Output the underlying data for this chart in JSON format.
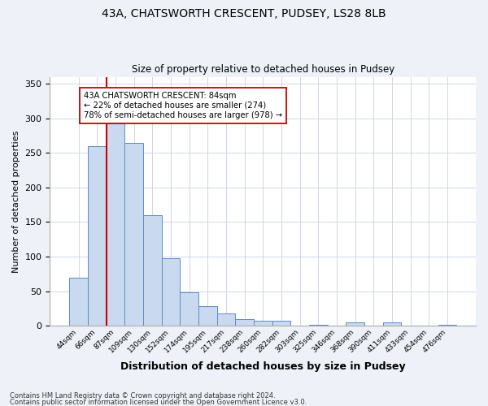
{
  "title1": "43A, CHATSWORTH CRESCENT, PUDSEY, LS28 8LB",
  "title2": "Size of property relative to detached houses in Pudsey",
  "xlabel": "Distribution of detached houses by size in Pudsey",
  "ylabel": "Number of detached properties",
  "bar_labels": [
    "44sqm",
    "66sqm",
    "87sqm",
    "109sqm",
    "130sqm",
    "152sqm",
    "174sqm",
    "195sqm",
    "217sqm",
    "238sqm",
    "260sqm",
    "282sqm",
    "303sqm",
    "325sqm",
    "346sqm",
    "368sqm",
    "390sqm",
    "411sqm",
    "433sqm",
    "454sqm",
    "476sqm"
  ],
  "bar_values": [
    70,
    260,
    293,
    265,
    160,
    98,
    48,
    28,
    18,
    10,
    7,
    7,
    0,
    2,
    0,
    5,
    0,
    5,
    0,
    0,
    2
  ],
  "bar_color": "#c9d9ef",
  "bar_edge_color": "#5b8cc8",
  "vline_color": "#cc0000",
  "annotation_text": "43A CHATSWORTH CRESCENT: 84sqm\n← 22% of detached houses are smaller (274)\n78% of semi-detached houses are larger (978) →",
  "annotation_box_color": "#ffffff",
  "annotation_box_edge_color": "#cc0000",
  "ylim": [
    0,
    360
  ],
  "yticks": [
    0,
    50,
    100,
    150,
    200,
    250,
    300,
    350
  ],
  "footnote1": "Contains HM Land Registry data © Crown copyright and database right 2024.",
  "footnote2": "Contains public sector information licensed under the Open Government Licence v3.0.",
  "background_color": "#eef2f8",
  "plot_bg_color": "#ffffff"
}
